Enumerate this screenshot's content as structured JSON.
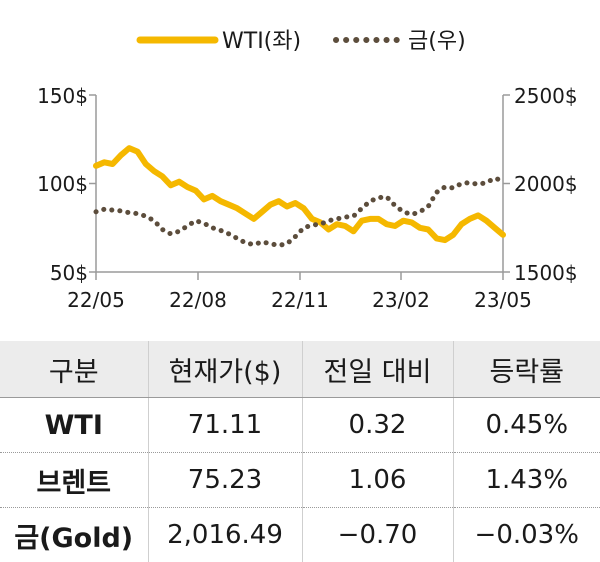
{
  "chart_data": {
    "type": "line",
    "legend": {
      "placement": "top",
      "items": [
        {
          "label": "WTI(좌)",
          "style": "solid",
          "color": "#f5b800"
        },
        {
          "label": "금(우)",
          "style": "dotted",
          "color": "#5c4d3c"
        }
      ]
    },
    "x_ticks": [
      "22/05",
      "22/08",
      "22/11",
      "23/02",
      "23/05"
    ],
    "y_left": {
      "ticks": [
        "150$",
        "100$",
        "50$"
      ],
      "min": 50,
      "max": 150
    },
    "y_right": {
      "ticks": [
        "2500$",
        "2000$",
        "1500$"
      ],
      "min": 1500,
      "max": 2500
    },
    "series": [
      {
        "name": "WTI(좌)",
        "axis": "left",
        "color": "#f5b800",
        "style": "solid",
        "x": [
          "22/05",
          "22/05",
          "22/05",
          "22/05",
          "22/06",
          "22/06",
          "22/06",
          "22/06",
          "22/07",
          "22/07",
          "22/07",
          "22/07",
          "22/08",
          "22/08",
          "22/08",
          "22/08",
          "22/09",
          "22/09",
          "22/09",
          "22/09",
          "22/10",
          "22/10",
          "22/10",
          "22/10",
          "22/11",
          "22/11",
          "22/11",
          "22/11",
          "22/12",
          "22/12",
          "22/12",
          "22/12",
          "23/01",
          "23/01",
          "23/01",
          "23/01",
          "23/02",
          "23/02",
          "23/02",
          "23/02",
          "23/03",
          "23/03",
          "23/03",
          "23/03",
          "23/04",
          "23/04",
          "23/04",
          "23/04",
          "23/05",
          "23/05"
        ],
        "values": [
          110,
          112,
          111,
          116,
          120,
          118,
          111,
          107,
          104,
          99,
          101,
          98,
          96,
          91,
          93,
          90,
          88,
          86,
          83,
          80,
          84,
          88,
          90,
          87,
          89,
          86,
          80,
          78,
          74,
          77,
          76,
          73,
          79,
          80,
          80,
          77,
          76,
          79,
          78,
          75,
          74,
          69,
          68,
          71,
          77,
          80,
          82,
          79,
          75,
          71
        ]
      },
      {
        "name": "금(우)",
        "axis": "right",
        "color": "#5c4d3c",
        "style": "dotted",
        "x": [
          "22/05",
          "22/05",
          "22/05",
          "22/05",
          "22/06",
          "22/06",
          "22/06",
          "22/06",
          "22/07",
          "22/07",
          "22/07",
          "22/07",
          "22/08",
          "22/08",
          "22/08",
          "22/08",
          "22/09",
          "22/09",
          "22/09",
          "22/09",
          "22/10",
          "22/10",
          "22/10",
          "22/10",
          "22/11",
          "22/11",
          "22/11",
          "22/11",
          "22/12",
          "22/12",
          "22/12",
          "22/12",
          "23/01",
          "23/01",
          "23/01",
          "23/01",
          "23/02",
          "23/02",
          "23/02",
          "23/02",
          "23/03",
          "23/03",
          "23/03",
          "23/03",
          "23/04",
          "23/04",
          "23/04",
          "23/04",
          "23/05",
          "23/05"
        ],
        "values": [
          1840,
          1855,
          1850,
          1845,
          1835,
          1830,
          1815,
          1790,
          1740,
          1715,
          1730,
          1760,
          1790,
          1775,
          1750,
          1735,
          1715,
          1690,
          1665,
          1655,
          1670,
          1660,
          1650,
          1660,
          1700,
          1750,
          1765,
          1770,
          1790,
          1800,
          1810,
          1815,
          1860,
          1900,
          1920,
          1925,
          1875,
          1840,
          1825,
          1840,
          1870,
          1950,
          1980,
          1975,
          2000,
          2005,
          1995,
          2005,
          2030,
          2016
        ]
      }
    ]
  },
  "table": {
    "headers": [
      "구분",
      "현재가($)",
      "전일 대비",
      "등락률"
    ],
    "rows": [
      [
        "WTI",
        "71.11",
        "0.32",
        "0.45%"
      ],
      [
        "브렌트",
        "75.23",
        "1.06",
        "1.43%"
      ],
      [
        "금(Gold)",
        "2,016.49",
        "−0.70",
        "−0.03%"
      ]
    ]
  }
}
